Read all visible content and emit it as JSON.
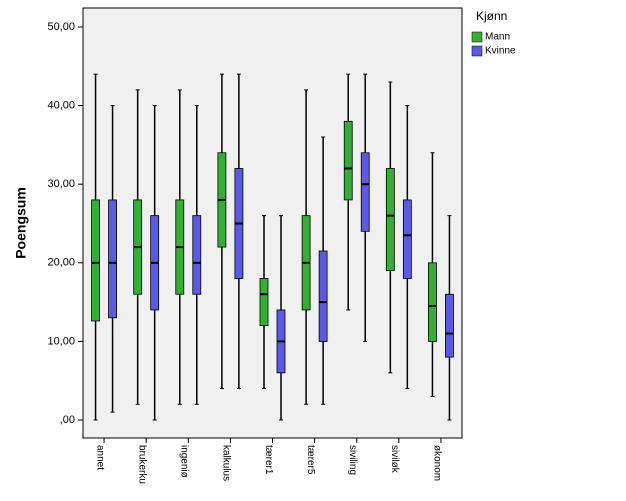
{
  "chart_data": {
    "type": "boxplot",
    "y_label": "Poengsum",
    "legend_title": "Kjønn",
    "categories": [
      "annet",
      "brukerku",
      "ingeniø",
      "kalkulus",
      "tærer1",
      "tærer5",
      "siviling",
      "siviløk",
      "økonom"
    ],
    "series": [
      {
        "name": "Mann",
        "color": "#33b033",
        "min": [
          0,
          2,
          2,
          4,
          4,
          2,
          14,
          6,
          3
        ],
        "q1": [
          12.6,
          16,
          16,
          22,
          12,
          14,
          28,
          19,
          10
        ],
        "median": [
          20,
          22,
          22,
          28,
          16,
          20,
          32,
          26,
          14.5
        ],
        "q3": [
          28,
          28,
          28,
          34,
          18,
          26,
          38,
          32,
          20
        ],
        "max": [
          44,
          42,
          42,
          44,
          26,
          42,
          44,
          43,
          34
        ]
      },
      {
        "name": "Kvinne",
        "color": "#5a5ae6",
        "min": [
          1,
          0,
          2,
          4,
          0,
          2,
          10,
          4,
          0
        ],
        "q1": [
          13,
          14,
          16,
          18,
          6,
          10,
          24,
          18,
          8
        ],
        "median": [
          20,
          20,
          20,
          25,
          10,
          15,
          30,
          23.5,
          11
        ],
        "q3": [
          28,
          26,
          26,
          32,
          14,
          21.5,
          34,
          28,
          16
        ],
        "max": [
          40,
          40,
          40,
          44,
          26,
          36,
          44,
          40,
          26
        ]
      }
    ],
    "ylim": [
      0,
      50
    ],
    "yticks": [
      {
        "value": 0,
        "label": ",00"
      },
      {
        "value": 10,
        "label": "10,00"
      },
      {
        "value": 20,
        "label": "20,00"
      },
      {
        "value": 30,
        "label": "30,00"
      },
      {
        "value": 40,
        "label": "40,00"
      },
      {
        "value": 50,
        "label": "50,00"
      }
    ]
  }
}
